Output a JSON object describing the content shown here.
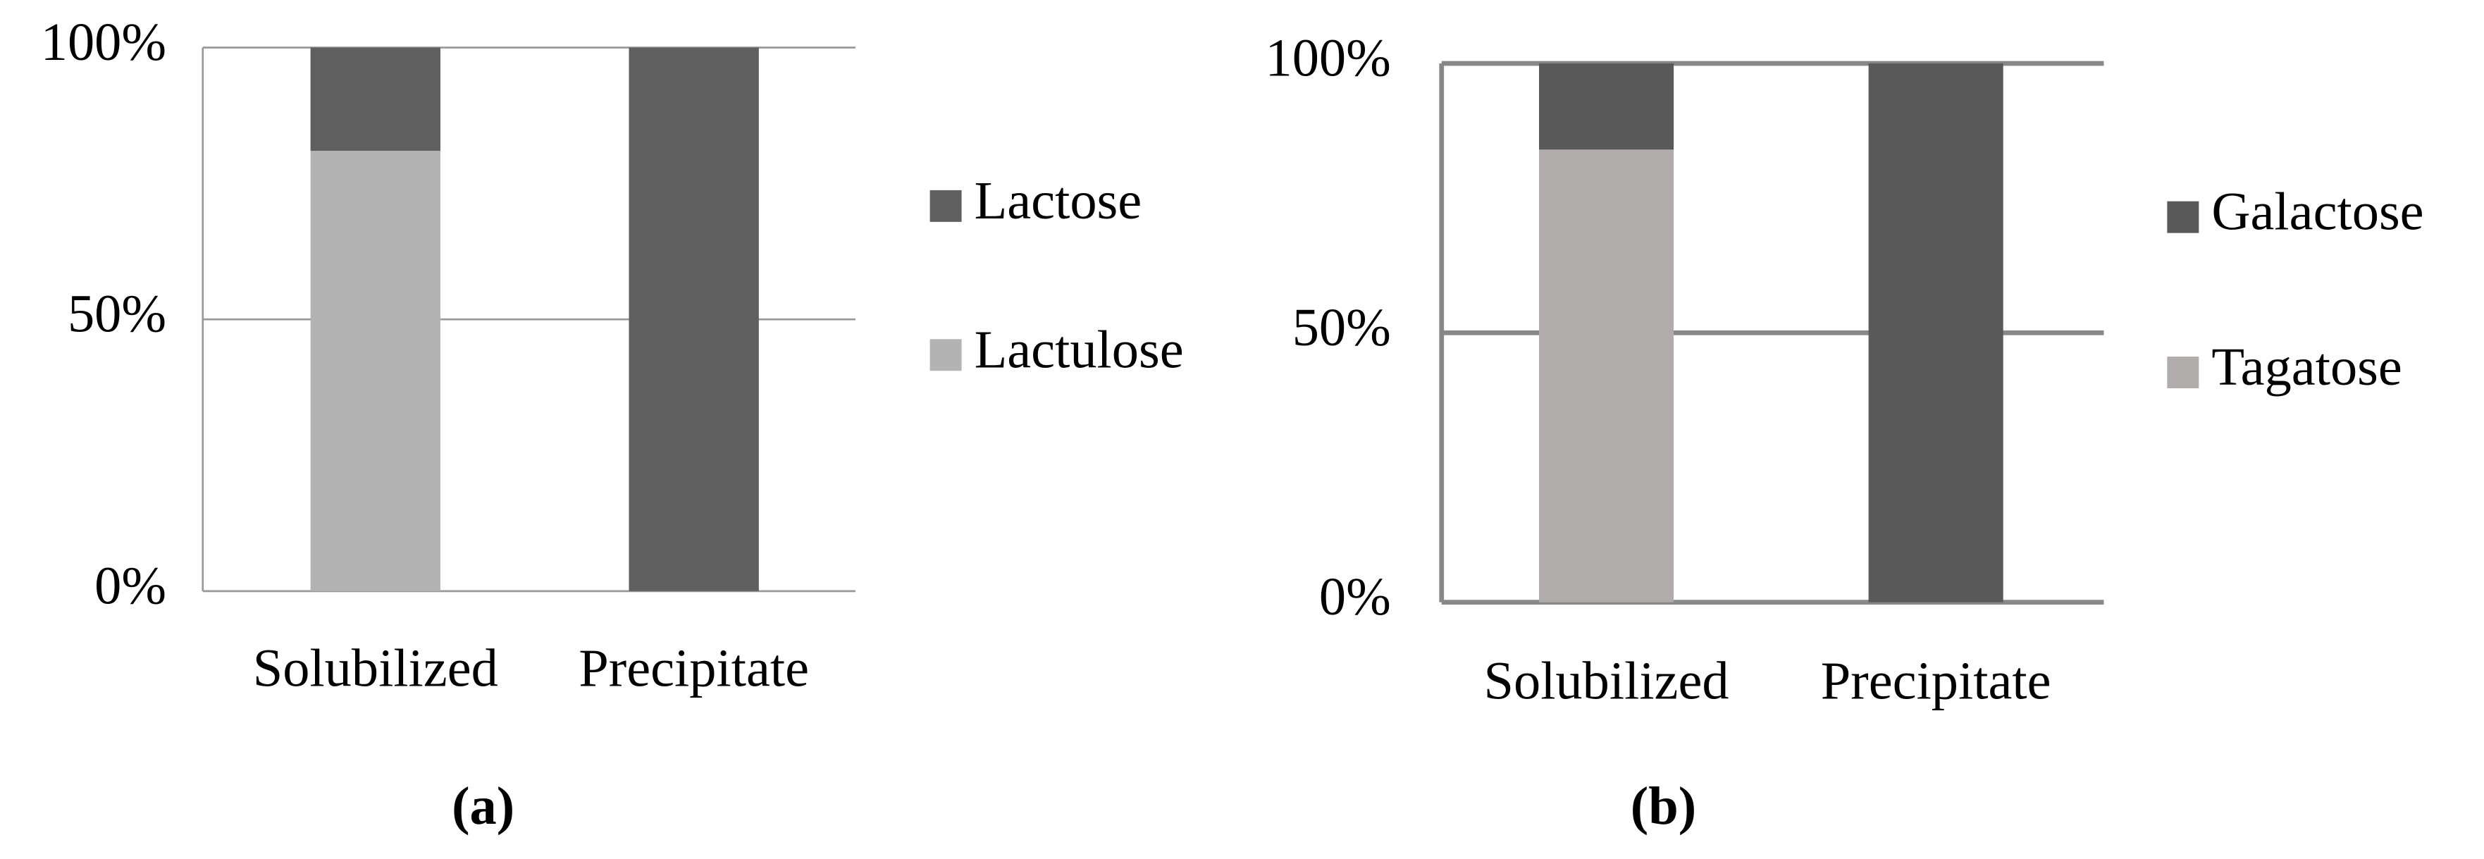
{
  "chart_data": [
    {
      "type": "bar",
      "stacked": true,
      "caption": "(a)",
      "categories": [
        "Solubilized",
        "Precipitate"
      ],
      "series": [
        {
          "name": "Lactulose",
          "color": "#b3b3b3",
          "values": [
            81,
            0
          ]
        },
        {
          "name": "Lactose",
          "color": "#5f5f5f",
          "values": [
            19,
            100
          ]
        }
      ],
      "ylim": [
        0,
        100
      ],
      "yticks": [
        {
          "value": 0,
          "label": "0%"
        },
        {
          "value": 50,
          "label": "50%"
        },
        {
          "value": 100,
          "label": "100%"
        }
      ],
      "grid": true,
      "legend": "right"
    },
    {
      "type": "bar",
      "stacked": true,
      "caption": "(b)",
      "categories": [
        "Solubilized",
        "Precipitate"
      ],
      "series": [
        {
          "name": "Tagatose",
          "color": "#b0acab",
          "values": [
            84,
            0
          ]
        },
        {
          "name": "Galactose",
          "color": "#595959",
          "values": [
            16,
            100
          ]
        }
      ],
      "ylim": [
        0,
        100
      ],
      "yticks": [
        {
          "value": 0,
          "label": "0%"
        },
        {
          "value": 50,
          "label": "50%"
        },
        {
          "value": 100,
          "label": "100%"
        }
      ],
      "grid": true,
      "legend": "right"
    }
  ]
}
